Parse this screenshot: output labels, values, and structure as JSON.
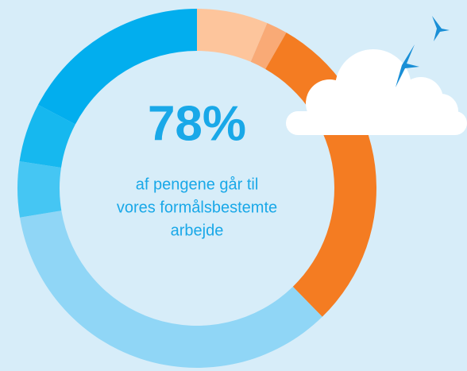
{
  "chart_data": {
    "type": "donut",
    "values": [
      6.4,
      1.9,
      29.4,
      34.7,
      5,
      5.3,
      17.3
    ],
    "colors": [
      "#fdc59c",
      "#f9aa76",
      "#f47c22",
      "#90d6f6",
      "#45c6f3",
      "#16b8ef",
      "#02aeee"
    ],
    "center_value": "78%",
    "center_text": [
      "af pengene går til",
      "vores formålsbestemte",
      "arbejde"
    ]
  }
}
